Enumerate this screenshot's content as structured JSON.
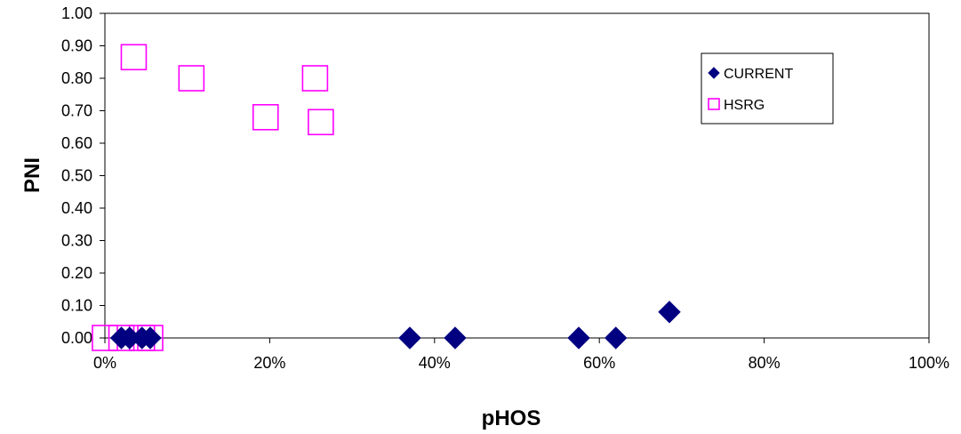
{
  "chart_data": {
    "type": "scatter",
    "xlabel": "pHOS",
    "ylabel": "PNI",
    "xlim": [
      0,
      1
    ],
    "ylim": [
      0,
      1
    ],
    "x_ticks": [
      "0%",
      "20%",
      "40%",
      "60%",
      "80%",
      "100%"
    ],
    "y_ticks": [
      "0.00",
      "0.10",
      "0.20",
      "0.30",
      "0.40",
      "0.50",
      "0.60",
      "0.70",
      "0.80",
      "0.90",
      "1.00"
    ],
    "grid": false,
    "legend_position": "top-right",
    "series": [
      {
        "name": "CURRENT",
        "marker": "diamond",
        "color": "#000080",
        "points": [
          {
            "x": 0.02,
            "y": 0.0
          },
          {
            "x": 0.03,
            "y": 0.0
          },
          {
            "x": 0.045,
            "y": 0.0
          },
          {
            "x": 0.055,
            "y": 0.0
          },
          {
            "x": 0.37,
            "y": 0.0
          },
          {
            "x": 0.425,
            "y": 0.0
          },
          {
            "x": 0.575,
            "y": 0.0
          },
          {
            "x": 0.62,
            "y": 0.0
          },
          {
            "x": 0.685,
            "y": 0.08
          }
        ]
      },
      {
        "name": "HSRG",
        "marker": "square",
        "color": "#ff00ff",
        "points": [
          {
            "x": 0.0,
            "y": 0.0
          },
          {
            "x": 0.02,
            "y": 0.0
          },
          {
            "x": 0.035,
            "y": 0.865
          },
          {
            "x": 0.045,
            "y": 0.0
          },
          {
            "x": 0.055,
            "y": 0.0
          },
          {
            "x": 0.105,
            "y": 0.8
          },
          {
            "x": 0.195,
            "y": 0.68
          },
          {
            "x": 0.255,
            "y": 0.8
          },
          {
            "x": 0.262,
            "y": 0.665
          }
        ]
      }
    ]
  }
}
